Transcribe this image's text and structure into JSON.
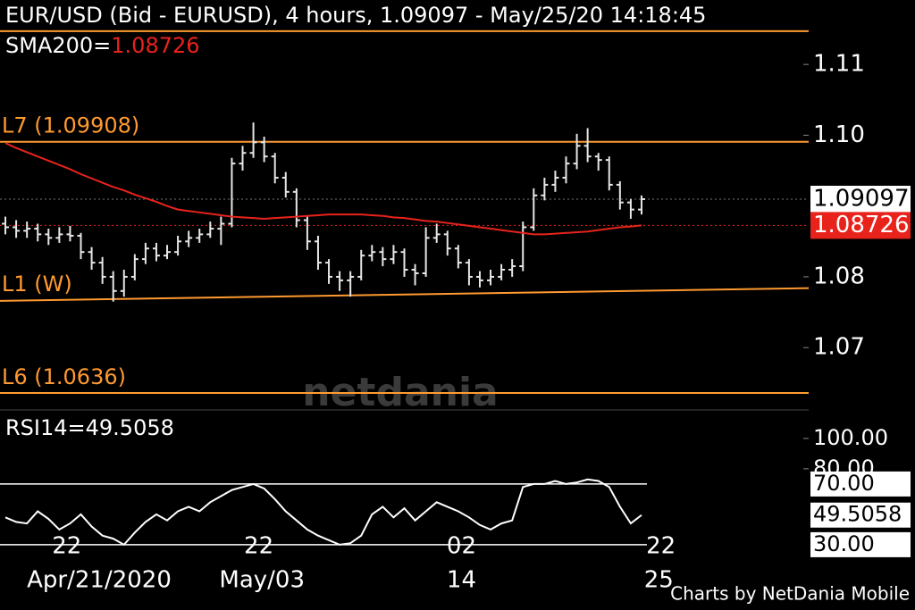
{
  "chart_data": {
    "type": "ohlc",
    "title": "EUR/USD (Bid - EURUSD),  4 hours, 1.09097 - May/25/20 14:18:45",
    "sma_label": "SMA200=",
    "sma_color": "#e8231c",
    "bar_color": "#e6e6e6",
    "level_color": "#ff9a30",
    "watermark": "netdania",
    "footer": "Charts by NetDania Mobile",
    "xlim": [
      -0.5,
      74.5
    ],
    "ylim": [
      1.0617,
      1.1191
    ],
    "yticks": [
      1.11,
      {
        "value": 1.1,
        "label": "1.10"
      },
      1.08,
      1.07
    ],
    "xticks": [
      {
        "value": 5.7,
        "label": "22"
      },
      {
        "value": 23.5,
        "label": "22"
      },
      {
        "value": 42.3,
        "label": "02"
      },
      {
        "value": 60.8,
        "label": "22"
      }
    ],
    "xticks2": [
      {
        "value": 8.7,
        "label": "Apr/21/2020"
      },
      {
        "value": 23.8,
        "label": "May/03"
      },
      {
        "value": 42.3,
        "label": "14"
      },
      {
        "value": 60.6,
        "label": "25"
      }
    ],
    "open": [
      1.0875,
      1.087,
      1.0865,
      1.0868,
      1.086,
      1.0855,
      1.086,
      1.0858,
      1.0835,
      1.082,
      1.08,
      1.078,
      1.08,
      1.0825,
      1.084,
      1.083,
      1.0835,
      1.085,
      1.0855,
      1.086,
      1.0868,
      1.0875,
      1.096,
      1.0975,
      1.099,
      1.097,
      1.094,
      1.092,
      1.088,
      1.085,
      1.082,
      1.08,
      1.0795,
      1.08,
      1.083,
      1.0835,
      1.0825,
      1.0835,
      1.081,
      1.0805,
      1.0855,
      1.086,
      1.084,
      1.082,
      1.08,
      1.0795,
      1.08,
      1.081,
      1.0815,
      1.087,
      1.0915,
      1.093,
      1.094,
      1.096,
      1.0985,
      1.097,
      1.0965,
      1.093,
      1.0905,
      1.0895
    ],
    "high": [
      1.0885,
      1.088,
      1.0878,
      1.0875,
      1.0868,
      1.087,
      1.0872,
      1.0862,
      1.0842,
      1.0828,
      1.0808,
      1.081,
      1.0832,
      1.0848,
      1.0848,
      1.0845,
      1.0858,
      1.0865,
      1.0868,
      1.0878,
      1.0885,
      1.0968,
      1.0985,
      1.1018,
      1.0998,
      1.0975,
      1.0948,
      1.0925,
      1.0885,
      1.0858,
      1.0825,
      1.0808,
      1.0808,
      1.0838,
      1.0845,
      1.0842,
      1.0845,
      1.084,
      1.0818,
      1.087,
      1.0875,
      1.0865,
      1.0845,
      1.0825,
      1.0808,
      1.081,
      1.0818,
      1.0825,
      1.0878,
      1.0925,
      1.094,
      1.095,
      1.097,
      1.1002,
      1.101,
      1.0975,
      1.097,
      1.0935,
      1.091,
      1.0915
    ],
    "low": [
      1.086,
      1.0855,
      1.0855,
      1.085,
      1.0845,
      1.0848,
      1.085,
      1.0825,
      1.081,
      1.079,
      1.0765,
      1.0772,
      1.0795,
      1.0818,
      1.0822,
      1.0825,
      1.083,
      1.0842,
      1.0848,
      1.0855,
      1.0845,
      1.087,
      1.095,
      1.0968,
      1.0962,
      1.0932,
      1.0912,
      1.087,
      1.0838,
      1.081,
      1.079,
      1.078,
      1.0772,
      1.0795,
      1.0822,
      1.0815,
      1.0818,
      1.08,
      1.0788,
      1.08,
      1.0848,
      1.083,
      1.0812,
      1.0788,
      1.0785,
      1.0788,
      1.0795,
      1.08,
      1.0808,
      1.0865,
      1.0908,
      1.092,
      1.0932,
      1.0952,
      1.0962,
      1.095,
      1.0922,
      1.0895,
      1.0882,
      1.0888
    ],
    "close": [
      1.087,
      1.0865,
      1.0868,
      1.086,
      1.0855,
      1.086,
      1.0858,
      1.0835,
      1.082,
      1.08,
      1.078,
      1.08,
      1.0825,
      1.084,
      1.083,
      1.0835,
      1.085,
      1.0855,
      1.086,
      1.0868,
      1.0875,
      1.096,
      1.0975,
      1.099,
      1.097,
      1.094,
      1.092,
      1.088,
      1.085,
      1.082,
      1.08,
      1.0795,
      1.08,
      1.083,
      1.0835,
      1.0825,
      1.0835,
      1.081,
      1.0805,
      1.0855,
      1.086,
      1.084,
      1.082,
      1.08,
      1.0795,
      1.08,
      1.081,
      1.0815,
      1.087,
      1.0915,
      1.093,
      1.094,
      1.096,
      1.0985,
      1.097,
      1.0965,
      1.093,
      1.0905,
      1.0895,
      1.09097
    ],
    "sma": [
      1.0989,
      1.0982,
      1.0976,
      1.097,
      1.0964,
      1.0958,
      1.0952,
      1.0945,
      1.0939,
      1.0933,
      1.0927,
      1.0922,
      1.0916,
      1.0911,
      1.0906,
      1.09,
      1.0895,
      1.0893,
      1.0891,
      1.0889,
      1.0887,
      1.0885,
      1.0884,
      1.0883,
      1.0882,
      1.0883,
      1.0884,
      1.0885,
      1.0886,
      1.0887,
      1.0888,
      1.0888,
      1.0888,
      1.0888,
      1.0887,
      1.0886,
      1.0884,
      1.0883,
      1.0881,
      1.0879,
      1.0878,
      1.0876,
      1.0874,
      1.0872,
      1.087,
      1.0868,
      1.0866,
      1.0864,
      1.0862,
      1.086,
      1.086,
      1.0861,
      1.0862,
      1.0863,
      1.0864,
      1.0866,
      1.0868,
      1.087,
      1.0871,
      1.08726
    ],
    "levels": [
      {
        "value": 1.1147
      },
      {
        "label": "L7 (1.09908)",
        "value": 1.09908
      },
      {
        "label": "L6 (1.0636)",
        "value": 1.0636
      }
    ],
    "trendline": {
      "label": "L1 (W)",
      "x": [
        -0.5,
        74.5
      ],
      "values": [
        1.0766,
        1.0784
      ]
    },
    "rsi": {
      "label": "RSI14=49.5058",
      "color": "#ffffff",
      "ylim": [
        27,
        117
      ],
      "yticks": [
        {
          "value": 100,
          "label": "100.00"
        },
        {
          "value": 80,
          "label": "80.00"
        },
        {
          "value": 70,
          "label": "70.00",
          "boxed": true
        },
        {
          "value": 30,
          "label": "30.00",
          "boxed": true
        }
      ],
      "values": [
        48,
        45,
        44,
        52,
        47,
        40,
        44,
        50,
        42,
        36,
        34,
        30,
        38,
        45,
        50,
        46,
        52,
        55,
        52,
        58,
        62,
        66,
        68,
        70,
        67,
        60,
        52,
        46,
        40,
        36,
        33,
        30,
        31,
        36,
        50,
        55,
        48,
        54,
        46,
        52,
        58,
        55,
        52,
        48,
        43,
        40,
        44,
        46,
        68,
        70,
        70,
        72,
        70,
        71,
        73,
        72,
        68,
        55,
        44,
        49.5058
      ]
    }
  }
}
